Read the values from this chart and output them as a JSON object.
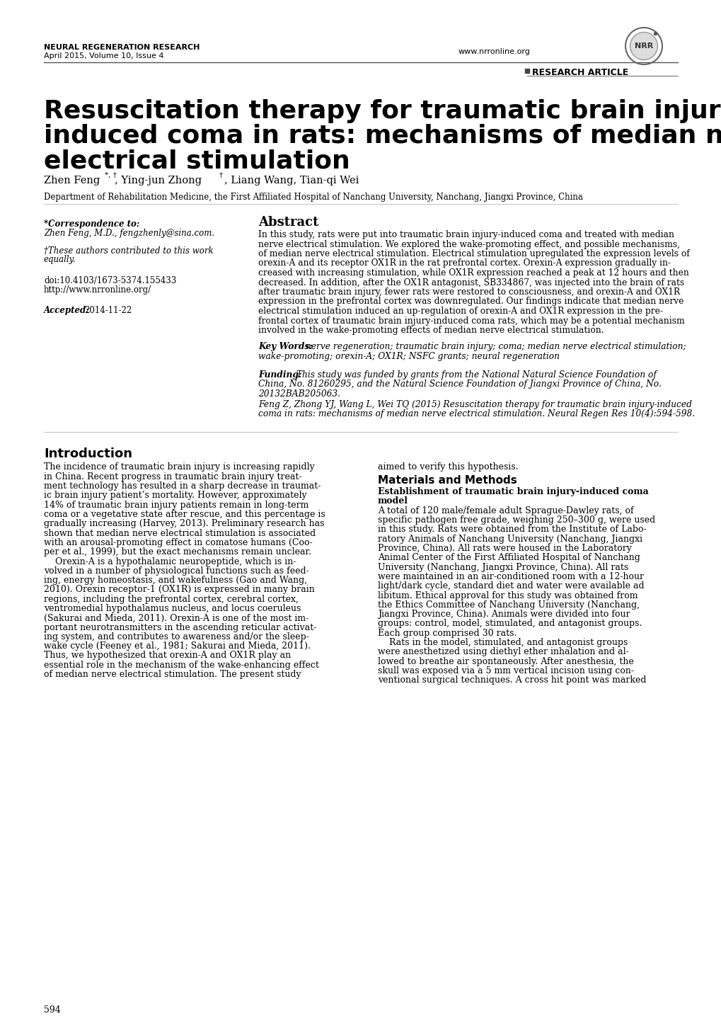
{
  "journal_name": "NEURAL REGENERATION RESEARCH",
  "journal_date": "April 2015, Volume 10, Issue 4",
  "journal_url": "www.nrronline.org",
  "article_type": "RESEARCH ARTICLE",
  "authors": "Zhen Feng*, †, Ying-jun Zhong†, Liang Wang, Tian-qi Wei",
  "affiliation": "Department of Rehabilitation Medicine, the First Affiliated Hospital of Nanchang University, Nanchang, Jiangxi Province, China",
  "corr_label": "*Correspondence to:",
  "corr_name": "Zhen Feng, M.D., fengzhenly@sina.com.",
  "equal_contrib": "†These authors contributed to this work equally.",
  "doi_text": "doi:10.4103/1673-5374.155433",
  "url_text": "http://www.nrronline.org/",
  "accepted_text": "Accepted: 2014-11-22",
  "abstract_title": "Abstract",
  "abstract_body": "In this study, rats were put into traumatic brain injury-induced coma and treated with median nerve electrical stimulation. We explored the wake-promoting effect, and possible mechanisms, of median nerve electrical stimulation. Electrical stimulation upregulated the expression levels of orexin-A and its receptor OX1R in the rat prefrontal cortex. Orexin-A expression gradually in-creased with increasing stimulation, while OX1R expression reached a peak at 12 hours and then decreased. In addition, after the OX1R antagonist, SB334867, was injected into the brain of rats after traumatic brain injury, fewer rats were restored to consciousness, and orexin-A and OX1R expression in the prefrontal cortex was downregulated. Our findings indicate that median nerve electrical stimulation induced an up-regulation of orexin-A and OX1R expression in the pre-frontal cortex of traumatic brain injury-induced coma rats, which may be a potential mechanism involved in the wake-promoting effects of median nerve electrical stimulation.",
  "kw_label": "Key Words:",
  "kw_text": " nerve regeneration; traumatic brain injury; coma; median nerve electrical stimulation; wake-promoting; orexin-A; OX1R; NSFC grants; neural regeneration",
  "fund_label": "Funding:",
  "fund_text": " This study was funded by grants from the National Natural Science Foundation of China, No. 81260295, and the Natural Science Foundation of Jiangxi Province of China, No. 20132BAB205063.",
  "cite_text": "Feng Z, Zhong YJ, Wang L, Wei TQ (2015) Resuscitation therapy for traumatic brain injury-induced coma in rats: mechanisms of median nerve electrical stimulation. Neural Regen Res 10(4):594-598.",
  "intro_title": "Introduction",
  "intro_left_lines": [
    "The incidence of traumatic brain injury is increasing rapidly",
    "in China. Recent progress in traumatic brain injury treat-",
    "ment technology has resulted in a sharp decrease in traumat-",
    "ic brain injury patient’s mortality. However, approximately",
    "14% of traumatic brain injury patients remain in long-term",
    "coma or a vegetative state after rescue, and this percentage is",
    "gradually increasing (Harvey, 2013). Preliminary research has",
    "shown that median nerve electrical stimulation is associated",
    "with an arousal-promoting effect in comatose humans (Coo-",
    "per et al., 1999), but the exact mechanisms remain unclear.",
    "    Orexin-A is a hypothalamic neuropeptide, which is in-",
    "volved in a number of physiological functions such as feed-",
    "ing, energy homeostasis, and wakefulness (Gao and Wang,",
    "2010). Orexin receptor-1 (OX1R) is expressed in many brain",
    "regions, including the prefrontal cortex, cerebral cortex,",
    "ventromedial hypothalamus nucleus, and locus coeruleus",
    "(Sakurai and Mieda, 2011). Orexin-A is one of the most im-",
    "portant neurotransmitters in the ascending reticular activat-",
    "ing system, and contributes to awareness and/or the sleep-",
    "wake cycle (Feeney et al., 1981; Sakurai and Mieda, 2011).",
    "Thus, we hypothesized that orexin-A and OX1R play an",
    "essential role in the mechanism of the wake-enhancing effect",
    "of median nerve electrical stimulation. The present study"
  ],
  "intro_right_line1": "aimed to verify this hypothesis.",
  "mm_title": "Materials and Methods",
  "mm_subtitle": "Establishment of traumatic brain injury-induced coma model",
  "mm_lines": [
    "A total of 120 male/female adult Sprague-Dawley rats, of",
    "specific pathogen free grade, weighing 250–300 g, were used",
    "in this study. Rats were obtained from the Institute of Labo-",
    "ratory Animals of Nanchang University (Nanchang, Jiangxi",
    "Province, China). All rats were housed in the Laboratory",
    "Animal Center of the First Affiliated Hospital of Nanchang",
    "University (Nanchang, Jiangxi Province, China). All rats",
    "were maintained in an air-conditioned room with a 12-hour",
    "light/dark cycle, standard diet and water were available ad",
    "libitum. Ethical approval for this study was obtained from",
    "the Ethics Committee of Nanchang University (Nanchang,",
    "Jiangxi Province, China). Animals were divided into four",
    "groups: control, model, stimulated, and antagonist groups.",
    "Each group comprised 30 rats.",
    "    Rats in the model, stimulated, and antagonist groups",
    "were anesthetized using diethyl ether inhalation and al-",
    "lowed to breathe air spontaneously. After anesthesia, the",
    "skull was exposed via a 5 mm vertical incision using con-",
    "ventional surgical techniques. A cross hit point was marked"
  ],
  "page_num": "594",
  "bg_color": "#ffffff",
  "text_color": "#000000",
  "title_line1": "Resuscitation therapy for traumatic brain injury-",
  "title_line2": "induced coma in rats: mechanisms of median nerve",
  "title_line3": "electrical stimulation"
}
